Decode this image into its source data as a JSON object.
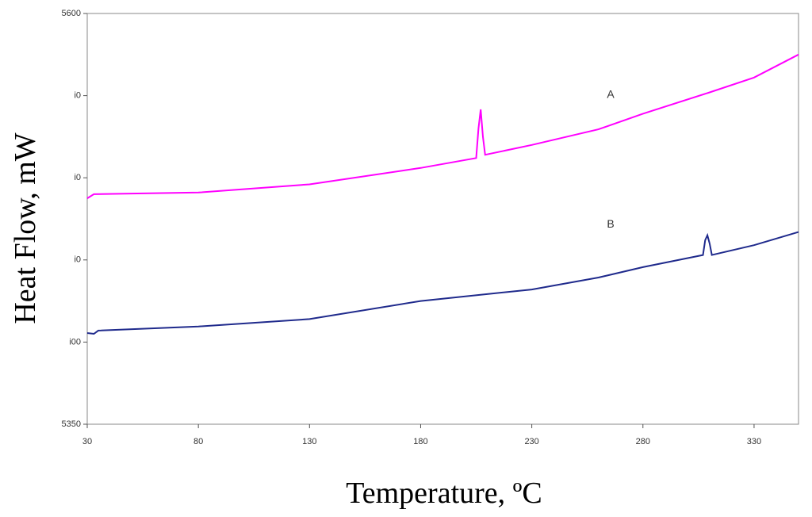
{
  "chart_data": {
    "type": "line",
    "xlabel": "Temperature, ºC",
    "ylabel": "Heat Flow, mW",
    "xlim": [
      30,
      350
    ],
    "xticks": [
      30,
      80,
      130,
      180,
      230,
      280,
      330
    ],
    "ylim": [
      5350,
      5600
    ],
    "yticks": [
      5350,
      {
        "value": 5400,
        "label": "i00"
      },
      {
        "value": 5450,
        "label": "i0"
      },
      {
        "value": 5500,
        "label": "i0"
      },
      {
        "value": 5550,
        "label": "i0"
      },
      5600
    ],
    "series": [
      {
        "name": "A",
        "color": "#ff00ff",
        "x": [
          30,
          33,
          80,
          130,
          180,
          205,
          206,
          207,
          208,
          209,
          230,
          260,
          280,
          310,
          330,
          350
        ],
        "values": [
          5487.5,
          5490,
          5491,
          5496,
          5506,
          5512,
          5530,
          5541.6,
          5525,
          5514,
          5520,
          5529.5,
          5539,
          5552,
          5561,
          5575
        ]
      },
      {
        "name": "B",
        "color": "#1f2a8c",
        "x": [
          30,
          33,
          35,
          80,
          130,
          180,
          230,
          260,
          280,
          307,
          308,
          309,
          310,
          311,
          330,
          350
        ],
        "values": [
          5405.5,
          5405,
          5407,
          5409.5,
          5414,
          5425,
          5432,
          5439.3,
          5445.6,
          5453,
          5462,
          5465,
          5460,
          5453,
          5459,
          5467
        ]
      }
    ]
  }
}
